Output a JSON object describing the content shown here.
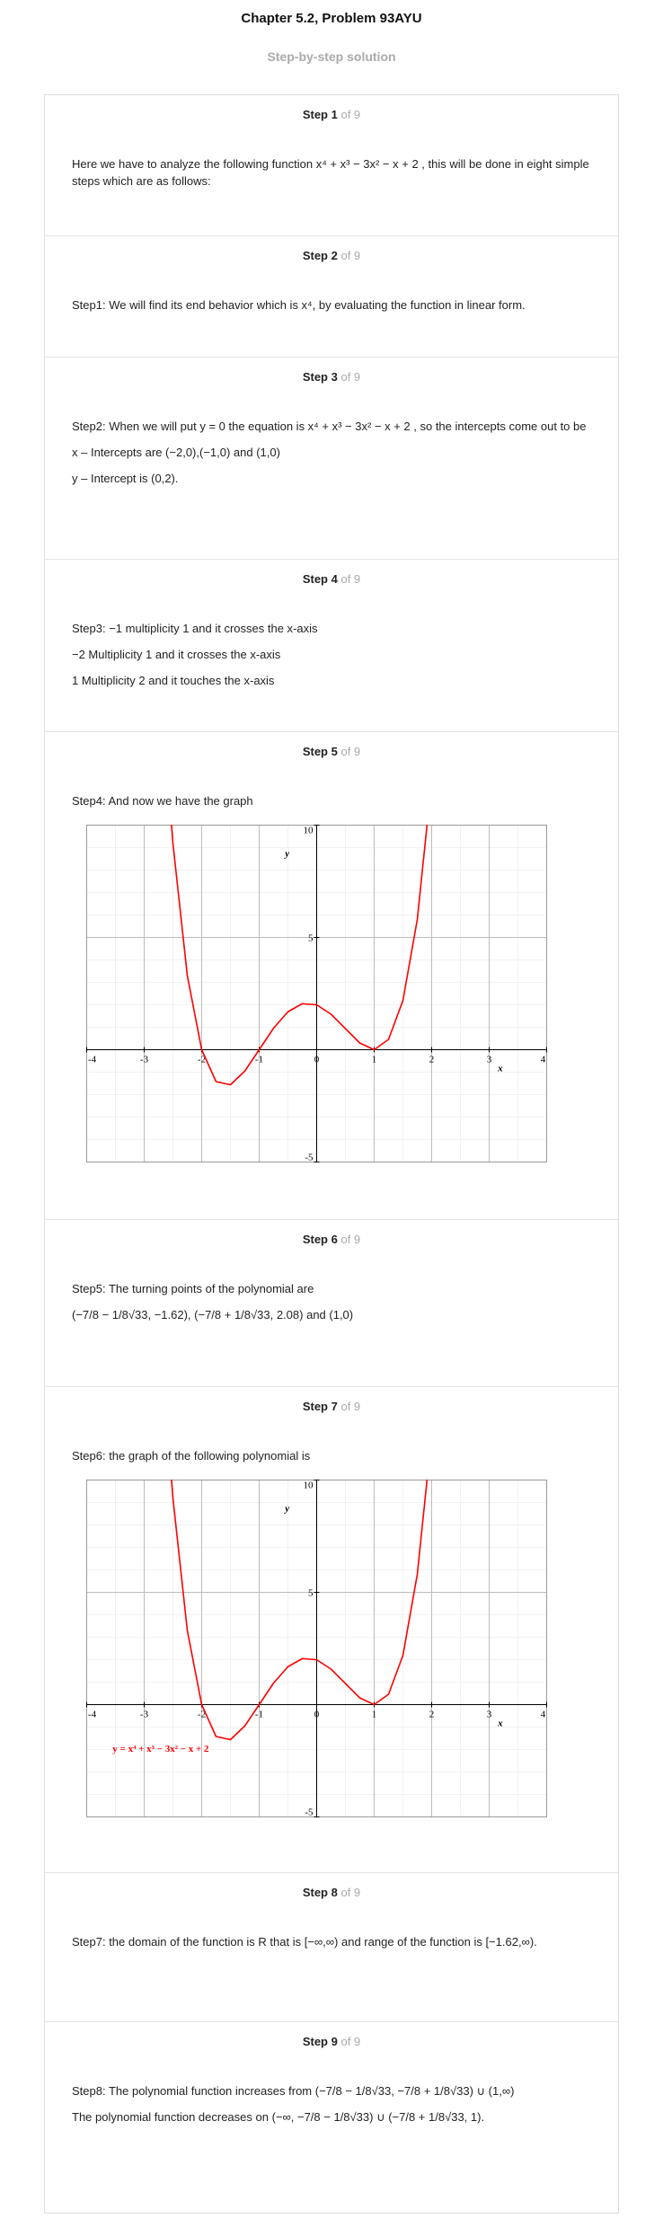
{
  "header": {
    "title": "Chapter 5.2, Problem 93AYU",
    "subtitle": "Step-by-step solution"
  },
  "steps": [
    {
      "label": "Step 1",
      "of": "of 9",
      "lines": [
        "Here we have to analyze the following function x⁴ + x³ − 3x² − x + 2 , this will be done in eight simple steps which are as follows:"
      ]
    },
    {
      "label": "Step 2",
      "of": "of 9",
      "lines": [
        "Step1: We will find its end behavior which is x⁴, by evaluating the function in linear form."
      ]
    },
    {
      "label": "Step 3",
      "of": "of 9",
      "lines": [
        "Step2: When we will put y = 0 the equation is x⁴ + x³ − 3x² − x + 2 , so the intercepts come out to be",
        "x – Intercepts are (−2,0),(−1,0) and (1,0)",
        "y – Intercept is (0,2)."
      ]
    },
    {
      "label": "Step 4",
      "of": "of 9",
      "lines": [
        "Step3: −1 multiplicity 1 and it crosses the x-axis",
        "−2 Multiplicity 1 and it crosses the x-axis",
        "1 Multiplicity 2 and it touches the x-axis"
      ]
    },
    {
      "label": "Step 5",
      "of": "of 9",
      "lines": [
        "Step4: And now we have the graph"
      ],
      "graph": {
        "type": "line",
        "xlabel": "x",
        "ylabel": "y",
        "xlim": [
          -4,
          4
        ],
        "ylim": [
          -5,
          10
        ],
        "xticks": [
          -4,
          -3,
          -2,
          -1,
          0,
          1,
          2,
          3,
          4
        ],
        "yticks": [
          -5,
          5,
          10
        ],
        "grid": true,
        "color": "#ff0000",
        "x": [
          -2.6,
          -2.5,
          -2.25,
          -2,
          -1.75,
          -1.5,
          -1.25,
          -1,
          -0.75,
          -0.5,
          -0.25,
          0,
          0.25,
          0.5,
          0.75,
          1,
          1.25,
          1.5,
          1.75,
          2
        ],
        "values": [
          12.44,
          9.19,
          3.3,
          0,
          -1.42,
          -1.56,
          -0.95,
          0,
          0.96,
          1.69,
          2.05,
          2,
          1.58,
          0.94,
          0.3,
          0,
          0.46,
          2.19,
          5.8,
          12
        ]
      }
    },
    {
      "label": "Step 6",
      "of": "of 9",
      "lines": [
        "Step5: The turning points of the polynomial are",
        "(−7/8 − 1/8√33, −1.62), (−7/8 + 1/8√33, 2.08) and (1,0)"
      ]
    },
    {
      "label": "Step 7",
      "of": "of 9",
      "lines": [
        "Step6: the graph of the following polynomial is"
      ],
      "graph": {
        "type": "line",
        "xlabel": "x",
        "ylabel": "y",
        "annotation": "y = x⁴ + x³ − 3x² − x + 2",
        "xlim": [
          -4,
          4
        ],
        "ylim": [
          -5,
          10
        ],
        "xticks": [
          -4,
          -3,
          -2,
          -1,
          0,
          1,
          2,
          3,
          4
        ],
        "yticks": [
          -5,
          5,
          10
        ],
        "grid": true,
        "color": "#ff0000",
        "x": [
          -2.6,
          -2.5,
          -2.25,
          -2,
          -1.75,
          -1.5,
          -1.25,
          -1,
          -0.75,
          -0.5,
          -0.25,
          0,
          0.25,
          0.5,
          0.75,
          1,
          1.25,
          1.5,
          1.75,
          2
        ],
        "values": [
          12.44,
          9.19,
          3.3,
          0,
          -1.42,
          -1.56,
          -0.95,
          0,
          0.96,
          1.69,
          2.05,
          2,
          1.58,
          0.94,
          0.3,
          0,
          0.46,
          2.19,
          5.8,
          12
        ]
      }
    },
    {
      "label": "Step 8",
      "of": "of 9",
      "lines": [
        "Step7: the domain of the function is R that is [−∞,∞) and range of the function is [−1.62,∞)."
      ]
    },
    {
      "label": "Step 9",
      "of": "of 9",
      "lines": [
        "Step8: The polynomial function increases from (−7/8 − 1/8√33, −7/8 + 1/8√33) ∪ (1,∞)",
        "The polynomial function decreases on (−∞, −7/8 − 1/8√33) ∪ (−7/8 + 1/8√33, 1)."
      ]
    }
  ]
}
